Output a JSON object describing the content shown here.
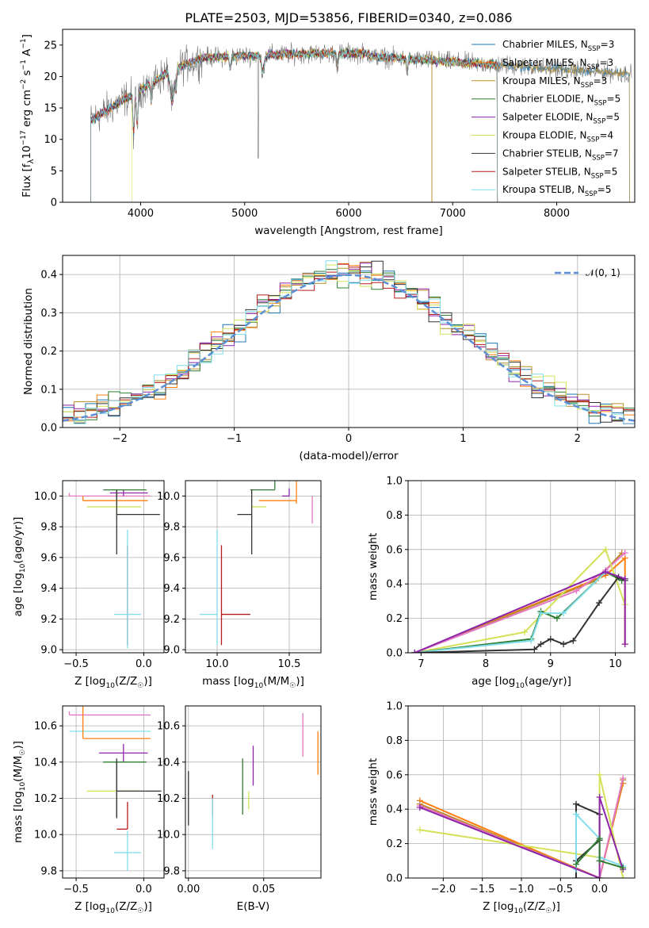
{
  "chart_data": [
    {
      "id": "spectrum",
      "type": "line",
      "title": "PLATE=2503, MJD=53856, FIBERID=0340, z=0.086",
      "xlabel": "wavelength [Angstrom, rest frame]",
      "ylabel": "Flux [f_λ 10^-17 erg cm^-2 s^-1 A^-1]",
      "ylabel_parts": {
        "a": "Flux [f",
        "b": "λ",
        "c": "10",
        "d": "−17",
        "e": " erg cm",
        "f": "−2",
        "g": " s",
        "h": "−1",
        "i": " A",
        "j": "−1",
        "k": "]"
      },
      "xlim": [
        3250,
        8750
      ],
      "ylim": [
        0,
        27.5
      ],
      "xticks": [
        4000,
        5000,
        6000,
        7000,
        8000
      ],
      "yticks": [
        0,
        5,
        10,
        15,
        20,
        25
      ],
      "grid": false,
      "legend_position": "top-right",
      "series": [
        {
          "name": "Chabrier MILES, N_SSP=3",
          "label_base": "Chabrier MILES, N",
          "label_sub": "SSP",
          "label_tail": "=3",
          "color": "#1f77b4"
        },
        {
          "name": "Salpeter MILES, N_SSP=3",
          "label_base": "Salpeter MILES, N",
          "label_sub": "SSP",
          "label_tail": "=3",
          "color": "#ff7f0e"
        },
        {
          "name": "Kroupa MILES, N_SSP=3",
          "label_base": "Kroupa MILES, N",
          "label_sub": "SSP",
          "label_tail": "=3",
          "color": "#bc8b2c"
        },
        {
          "name": "Chabrier ELODIE, N_SSP=5",
          "label_base": "Chabrier ELODIE, N",
          "label_sub": "SSP",
          "label_tail": "=5",
          "color": "#2e7d32"
        },
        {
          "name": "Salpeter ELODIE, N_SSP=5",
          "label_base": "Salpeter ELODIE, N",
          "label_sub": "SSP",
          "label_tail": "=5",
          "color": "#8e24aa"
        },
        {
          "name": "Kroupa ELODIE, N_SSP=4",
          "label_base": "Kroupa ELODIE, N",
          "label_sub": "SSP",
          "label_tail": "=4",
          "color": "#d4e157"
        },
        {
          "name": "Chabrier STELIB, N_SSP=7",
          "label_base": "Chabrier STELIB, N",
          "label_sub": "SSP",
          "label_tail": "=7",
          "color": "#333333"
        },
        {
          "name": "Salpeter STELIB, N_SSP=5",
          "label_base": "Salpeter STELIB, N",
          "label_sub": "SSP",
          "label_tail": "=5",
          "color": "#b71c1c"
        },
        {
          "name": "Kroupa STELIB, N_SSP=5",
          "label_base": "Kroupa STELIB, N",
          "label_sub": "SSP",
          "label_tail": "=5",
          "color": "#80deea"
        }
      ],
      "data_color": "#777777"
    },
    {
      "id": "residuals",
      "type": "step",
      "xlabel": "(data-model)/error",
      "ylabel": "Normed distribution",
      "xlim": [
        -2.5,
        2.5
      ],
      "ylim": [
        0,
        0.45
      ],
      "xticks": [
        -2,
        -1,
        0,
        1,
        2
      ],
      "yticks": [
        0.0,
        0.1,
        0.2,
        0.3,
        0.4
      ],
      "grid": true,
      "legend": "𝒩(0, 1)",
      "legend_position": "top-right",
      "gauss_color": "#5b8fd6"
    },
    {
      "id": "age-z",
      "type": "errorbar",
      "xlabel": "Z [log10(Z/Z☉)]",
      "xlabel_parts": {
        "a": "Z [log",
        "b": "10",
        "c": "(Z/Z",
        "d": "☉",
        "e": ")]"
      },
      "ylabel": "age [log10(age/yr)]",
      "ylabel_parts": {
        "a": "age  [log",
        "b": "10",
        "c": "(age/yr)]"
      },
      "xlim": [
        -0.6,
        0.15
      ],
      "ylim": [
        8.98,
        10.1
      ],
      "xticks": [
        -0.5,
        0.0
      ],
      "yticks": [
        9.0,
        9.2,
        9.4,
        9.6,
        9.8,
        10.0
      ],
      "grid": true,
      "points": [
        {
          "color": "#e377c2",
          "x": -0.55,
          "xerr": [
            0.0,
            0.6
          ],
          "y": 10.0,
          "yerr": [
            0.0,
            0.02
          ]
        },
        {
          "color": "#ff7f0e",
          "x": -0.45,
          "xerr": [
            0.0,
            0.48
          ],
          "y": 9.97,
          "yerr": [
            0.0,
            0.03
          ]
        },
        {
          "color": "#8e24aa",
          "x": -0.15,
          "xerr": [
            0.1,
            0.18
          ],
          "y": 10.02,
          "yerr": [
            0.02,
            0.02
          ]
        },
        {
          "color": "#2e7d32",
          "x": -0.2,
          "xerr": [
            0.1,
            0.22
          ],
          "y": 10.04,
          "yerr": [
            0.1,
            0.0
          ]
        },
        {
          "color": "#d4e157",
          "x": -0.2,
          "xerr": [
            0.22,
            0.18
          ],
          "y": 9.93,
          "yerr": [
            0.05,
            0.05
          ]
        },
        {
          "color": "#333333",
          "x": -0.2,
          "xerr": [
            0.0,
            0.32
          ],
          "y": 9.88,
          "yerr": [
            0.26,
            0.16
          ]
        },
        {
          "color": "#b71c1c",
          "x": -0.12,
          "xerr": [
            0.0,
            0.0
          ],
          "y": 9.23,
          "yerr": [
            0.2,
            0.45
          ]
        },
        {
          "color": "#80deea",
          "x": -0.12,
          "xerr": [
            0.1,
            0.1
          ],
          "y": 9.23,
          "yerr": [
            0.22,
            0.55
          ]
        }
      ]
    },
    {
      "id": "age-mass",
      "type": "errorbar",
      "xlabel": "mass [log10(M/M☉)]",
      "xlabel_parts": {
        "a": "mass [log",
        "b": "10",
        "c": "(M/M",
        "d": "☉",
        "e": ")]"
      },
      "xlim": [
        9.78,
        10.72
      ],
      "ylim": [
        8.98,
        10.1
      ],
      "xticks": [
        10.0,
        10.5
      ],
      "yticks": [
        9.0,
        9.2,
        9.4,
        9.6,
        9.8,
        10.0
      ],
      "grid": true,
      "points": [
        {
          "color": "#2e7d32",
          "x": 10.4,
          "xerr": [
            0.17,
            0.0
          ],
          "y": 10.04,
          "yerr": [
            0.0,
            0.1
          ]
        },
        {
          "color": "#8e24aa",
          "x": 10.5,
          "xerr": [
            0.05,
            0.0
          ],
          "y": 10.0,
          "yerr": [
            0.0,
            0.05
          ]
        },
        {
          "color": "#ff7f0e",
          "x": 10.55,
          "xerr": [
            0.26,
            0.0
          ],
          "y": 9.97,
          "yerr": [
            0.02,
            0.15
          ]
        },
        {
          "color": "#e377c2",
          "x": 10.66,
          "xerr": [
            0.0,
            0.0
          ],
          "y": 10.0,
          "yerr": [
            0.18,
            0.0
          ]
        },
        {
          "color": "#d4e157",
          "x": 10.24,
          "xerr": [
            0.0,
            0.1
          ],
          "y": 9.93,
          "yerr": [
            0.0,
            0.0
          ]
        },
        {
          "color": "#333333",
          "x": 10.24,
          "xerr": [
            0.1,
            0.0
          ],
          "y": 9.88,
          "yerr": [
            0.26,
            0.16
          ]
        },
        {
          "color": "#b71c1c",
          "x": 10.03,
          "xerr": [
            0.0,
            0.2
          ],
          "y": 9.23,
          "yerr": [
            0.2,
            0.45
          ]
        },
        {
          "color": "#80deea",
          "x": 10.0,
          "xerr": [
            0.12,
            0.0
          ],
          "y": 9.23,
          "yerr": [
            0.2,
            0.55
          ]
        }
      ]
    },
    {
      "id": "mass-z",
      "type": "errorbar",
      "xlabel": "Z [log10(Z/Z☉)]",
      "xlabel_parts": {
        "a": "Z [log",
        "b": "10",
        "c": "(Z/Z",
        "d": "☉",
        "e": ")]"
      },
      "ylabel": "mass [log10(M/M☉)]",
      "ylabel_parts": {
        "a": "mass [log",
        "b": "10",
        "c": "(M/M",
        "d": "☉",
        "e": ")]"
      },
      "xlim": [
        -0.6,
        0.15
      ],
      "ylim": [
        9.76,
        10.71
      ],
      "xticks": [
        -0.5,
        0.0
      ],
      "yticks": [
        9.8,
        10.0,
        10.2,
        10.4,
        10.6
      ],
      "grid": true,
      "points": [
        {
          "color": "#e377c2",
          "x": -0.55,
          "xerr": [
            0.0,
            0.6
          ],
          "y": 10.66,
          "yerr": [
            0.0,
            0.02
          ]
        },
        {
          "color": "#80deea",
          "x": -0.55,
          "xerr": [
            0.0,
            0.6
          ],
          "y": 10.57,
          "yerr": [
            0.0,
            0.0
          ]
        },
        {
          "color": "#ff7f0e",
          "x": -0.45,
          "xerr": [
            0.0,
            0.5
          ],
          "y": 10.53,
          "yerr": [
            0.0,
            0.22
          ]
        },
        {
          "color": "#8e24aa",
          "x": -0.15,
          "xerr": [
            0.18,
            0.18
          ],
          "y": 10.45,
          "yerr": [
            0.05,
            0.05
          ]
        },
        {
          "color": "#2e7d32",
          "x": -0.2,
          "xerr": [
            0.1,
            0.22
          ],
          "y": 10.4,
          "yerr": [
            0.3,
            0.0
          ]
        },
        {
          "color": "#d4e157",
          "x": -0.2,
          "xerr": [
            0.22,
            0.18
          ],
          "y": 10.24,
          "yerr": [
            0.05,
            0.0
          ]
        },
        {
          "color": "#333333",
          "x": -0.2,
          "xerr": [
            0.0,
            0.33
          ],
          "y": 10.24,
          "yerr": [
            0.15,
            0.18
          ]
        },
        {
          "color": "#b71c1c",
          "x": -0.12,
          "xerr": [
            0.08,
            0.0
          ],
          "y": 10.03,
          "yerr": [
            0.0,
            0.15
          ]
        },
        {
          "color": "#80deea",
          "x": -0.12,
          "xerr": [
            0.1,
            0.1
          ],
          "y": 9.9,
          "yerr": [
            0.1,
            0.12
          ]
        }
      ]
    },
    {
      "id": "mass-ebv",
      "type": "errorbar",
      "xlabel": "E(B-V)",
      "xlim": [
        -0.002,
        0.088
      ],
      "ylim": [
        9.76,
        10.71
      ],
      "xticks": [
        0.0,
        0.05
      ],
      "xticklabels": [
        "0.00",
        "0.05"
      ],
      "yticks": [
        9.8,
        10.0,
        10.2,
        10.4,
        10.6
      ],
      "grid": true,
      "points": [
        {
          "color": "#333333",
          "x": 0.0,
          "y": 10.2,
          "yerr": [
            0.15,
            0.15
          ]
        },
        {
          "color": "#b71c1c",
          "x": 0.016,
          "y": 10.1,
          "yerr": [
            0.0,
            0.12
          ]
        },
        {
          "color": "#80deea",
          "x": 0.016,
          "y": 10.0,
          "yerr": [
            0.08,
            0.2
          ]
        },
        {
          "color": "#2e7d32",
          "x": 0.036,
          "y": 10.27,
          "yerr": [
            0.16,
            0.15
          ]
        },
        {
          "color": "#d4e157",
          "x": 0.04,
          "y": 10.24,
          "yerr": [
            0.1,
            0.0
          ]
        },
        {
          "color": "#8e24aa",
          "x": 0.043,
          "y": 10.38,
          "yerr": [
            0.11,
            0.11
          ]
        },
        {
          "color": "#e377c2",
          "x": 0.076,
          "y": 10.55,
          "yerr": [
            0.12,
            0.12
          ]
        },
        {
          "color": "#ff7f0e",
          "x": 0.086,
          "y": 10.45,
          "yerr": [
            0.12,
            0.12
          ]
        }
      ]
    },
    {
      "id": "weight-age",
      "type": "line",
      "xlabel": "age [log10(age/yr)]",
      "xlabel_parts": {
        "a": "age  [log",
        "b": "10",
        "c": "(age/yr)]"
      },
      "ylabel": "mass weight",
      "xlim": [
        6.8,
        10.3
      ],
      "ylim": [
        0.0,
        1.0
      ],
      "xticks": [
        7,
        8,
        9,
        10
      ],
      "yticks": [
        0.0,
        0.2,
        0.4,
        0.6,
        0.8,
        1.0
      ],
      "grid": true,
      "series": [
        {
          "color": "#ff7f0e",
          "x": [
            6.9,
            9.85,
            10.15,
            10.15
          ],
          "y": [
            0.0,
            0.45,
            0.55,
            0.05
          ]
        },
        {
          "color": "#bc8b2c",
          "x": [
            6.9,
            9.7,
            10.1
          ],
          "y": [
            0.0,
            0.42,
            0.58
          ]
        },
        {
          "color": "#e377c2",
          "x": [
            6.9,
            9.4,
            9.85,
            10.15
          ],
          "y": [
            0.0,
            0.36,
            0.48,
            0.58
          ]
        },
        {
          "color": "#d4e157",
          "x": [
            6.9,
            8.6,
            9.85,
            10.15
          ],
          "y": [
            0.0,
            0.12,
            0.6,
            0.28
          ]
        },
        {
          "color": "#2e7d32",
          "x": [
            6.9,
            8.7,
            8.85,
            9.1,
            9.85,
            10.1
          ],
          "y": [
            0.0,
            0.08,
            0.24,
            0.2,
            0.47,
            0.42
          ]
        },
        {
          "color": "#80deea",
          "x": [
            6.9,
            8.7,
            8.85,
            9.2,
            9.85,
            10.15
          ],
          "y": [
            0.0,
            0.07,
            0.23,
            0.23,
            0.47,
            0.43
          ]
        },
        {
          "color": "#333333",
          "x": [
            6.9,
            8.75,
            8.85,
            9.0,
            9.2,
            9.35,
            9.75,
            10.05,
            10.15
          ],
          "y": [
            0.0,
            0.02,
            0.05,
            0.08,
            0.05,
            0.07,
            0.29,
            0.44,
            0.42
          ]
        },
        {
          "color": "#8e24aa",
          "x": [
            6.9,
            9.85,
            10.15,
            10.15
          ],
          "y": [
            0.0,
            0.47,
            0.43,
            0.05
          ]
        }
      ]
    },
    {
      "id": "weight-z",
      "type": "line",
      "xlabel": "Z [log10(Z/Z☉)]",
      "xlabel_parts": {
        "a": "Z [log",
        "b": "10",
        "c": "(Z/Z",
        "d": "☉",
        "e": ")]"
      },
      "ylabel": "mass weight",
      "xlim": [
        -2.45,
        0.45
      ],
      "ylim": [
        0.0,
        1.0
      ],
      "xticks": [
        -2.0,
        -1.5,
        -1.0,
        -0.5,
        0.0
      ],
      "xticklabels": [
        "−2.0",
        "−1.5",
        "−1.0",
        "−0.5",
        "0.0"
      ],
      "yticks": [
        0.0,
        0.2,
        0.4,
        0.6,
        0.8,
        1.0
      ],
      "grid": true,
      "series": [
        {
          "color": "#ff7f0e",
          "x": [
            -2.3,
            0.0,
            0.3
          ],
          "y": [
            0.45,
            0.0,
            0.55
          ]
        },
        {
          "color": "#bc8b2c",
          "x": [
            -2.3,
            0.0,
            0.3
          ],
          "y": [
            0.43,
            0.0,
            0.57
          ]
        },
        {
          "color": "#e377c2",
          "x": [
            -2.3,
            0.0,
            0.3
          ],
          "y": [
            0.42,
            0.0,
            0.58
          ]
        },
        {
          "color": "#d4e157",
          "x": [
            -2.3,
            0.0,
            0.0,
            0.3
          ],
          "y": [
            0.28,
            0.12,
            0.6,
            0.0
          ]
        },
        {
          "color": "#333333",
          "x": [
            -0.3,
            -0.3,
            0.0,
            0.0,
            -0.3
          ],
          "y": [
            0.0,
            0.43,
            0.37,
            0.22,
            0.1
          ]
        },
        {
          "color": "#80deea",
          "x": [
            -0.3,
            -0.3,
            0.0,
            0.0,
            0.3
          ],
          "y": [
            0.05,
            0.37,
            0.23,
            0.12,
            0.07
          ]
        },
        {
          "color": "#8e24aa",
          "x": [
            -2.3,
            0.0,
            0.0,
            0.3
          ],
          "y": [
            0.41,
            0.0,
            0.47,
            0.05
          ]
        },
        {
          "color": "#2e7d32",
          "x": [
            -0.3,
            0.0,
            0.0,
            0.3
          ],
          "y": [
            0.08,
            0.23,
            0.1,
            0.06
          ]
        }
      ]
    }
  ]
}
